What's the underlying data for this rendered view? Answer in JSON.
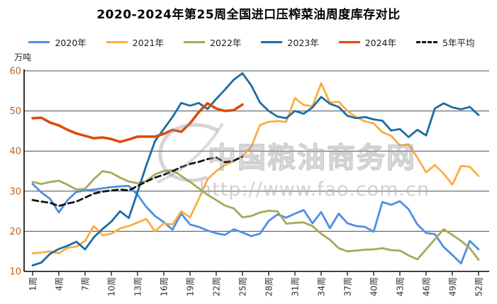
{
  "chart_data": {
    "type": "line",
    "title": "2020-2024年第25周全国进口压榨菜油周度库存对比",
    "unit_label": "万吨",
    "legend_position": "top",
    "grid": true,
    "x_axis": {
      "total_weeks": 52,
      "tick_weeks": [
        1,
        4,
        7,
        10,
        13,
        16,
        19,
        22,
        25,
        28,
        31,
        34,
        37,
        40,
        43,
        46,
        49,
        52
      ],
      "tick_labels": [
        "1周",
        "4周",
        "7周",
        "10周",
        "13周",
        "16周",
        "19周",
        "22周",
        "25周",
        "28周",
        "31周",
        "34周",
        "37周",
        "40周",
        "43周",
        "46周",
        "49周",
        "52周"
      ],
      "label_color": "#333333"
    },
    "y_axis": {
      "min": 10,
      "max": 60,
      "ticks": [
        10,
        20,
        30,
        40,
        50,
        60
      ],
      "label_color": "#C1641F"
    },
    "colors": {
      "gridline": "#4d4d4d",
      "axis": "#000000",
      "watermark": "#999999"
    },
    "series": [
      {
        "name": "2020年",
        "color": "#4E8FE2",
        "dash": null,
        "width": 2.8,
        "values": [
          31.8,
          29.7,
          28.1,
          24.7,
          27.8,
          29.8,
          30.2,
          30.4,
          30.7,
          31.0,
          31.2,
          31.3,
          29.1,
          26.1,
          23.8,
          22.3,
          20.4,
          24.4,
          21.7,
          21.1,
          20.2,
          19.5,
          19.1,
          20.5,
          19.7,
          18.8,
          19.4,
          22.6,
          24.2,
          23.4,
          24.4,
          25.3,
          22.0,
          24.8,
          20.8,
          24.4,
          22.0,
          21.3,
          21.1,
          19.9,
          27.3,
          26.6,
          27.5,
          25.5,
          21.7,
          19.6,
          19.3,
          16.1,
          14.1,
          12.0,
          17.6,
          15.5
        ]
      },
      {
        "name": "2021年",
        "color": "#FBAD41",
        "dash": null,
        "width": 2.8,
        "values": [
          14.5,
          14.7,
          15.0,
          14.5,
          15.9,
          16.2,
          17.6,
          21.3,
          19.0,
          19.4,
          20.7,
          21.3,
          22.2,
          23.1,
          20.0,
          22.0,
          21.7,
          25.0,
          23.5,
          28.0,
          33.0,
          35.0,
          36.5,
          37.5,
          38.8,
          41.0,
          46.5,
          47.3,
          47.5,
          47.3,
          53.2,
          51.5,
          51.2,
          56.9,
          52.1,
          52.3,
          50.0,
          48.5,
          47.4,
          46.9,
          44.7,
          43.8,
          41.4,
          41.7,
          38.4,
          34.7,
          36.5,
          34.4,
          31.6,
          36.3,
          36.1,
          33.8
        ]
      },
      {
        "name": "2022年",
        "color": "#A9A857",
        "dash": null,
        "width": 2.8,
        "values": [
          32.3,
          31.8,
          32.3,
          32.6,
          31.6,
          30.4,
          30.6,
          33.0,
          35.0,
          34.6,
          33.4,
          32.4,
          32.0,
          32.5,
          34.2,
          35.0,
          35.2,
          33.8,
          32.3,
          30.7,
          29.1,
          27.8,
          26.4,
          25.7,
          23.5,
          23.8,
          24.7,
          25.1,
          25.0,
          21.9,
          22.1,
          22.2,
          21.3,
          19.4,
          17.9,
          15.8,
          15.0,
          15.2,
          15.4,
          15.5,
          15.8,
          15.3,
          15.2,
          14.0,
          13.0,
          15.5,
          18.0,
          20.5,
          19.1,
          17.6,
          15.8,
          12.9
        ]
      },
      {
        "name": "2023年",
        "color": "#1B6CA4",
        "dash": null,
        "width": 2.8,
        "values": [
          11.5,
          12.2,
          14.4,
          15.6,
          16.4,
          17.4,
          15.5,
          18.5,
          20.6,
          22.4,
          25.0,
          23.3,
          29.8,
          36.4,
          42.5,
          45.5,
          48.5,
          52.0,
          51.3,
          52.0,
          50.5,
          53.0,
          55.3,
          57.8,
          59.4,
          56.4,
          52.1,
          50.0,
          48.6,
          48.2,
          50.0,
          49.3,
          50.9,
          53.5,
          51.8,
          51.0,
          48.8,
          48.2,
          48.5,
          47.9,
          47.6,
          45.1,
          45.5,
          43.5,
          45.3,
          43.9,
          50.6,
          51.9,
          50.9,
          50.4,
          51.0,
          49.0
        ]
      },
      {
        "name": "2024年",
        "color": "#DD4B0E",
        "dash": null,
        "width": 3.6,
        "values": [
          48.2,
          48.3,
          47.1,
          46.4,
          45.3,
          44.4,
          43.8,
          43.2,
          43.4,
          43.0,
          42.3,
          42.9,
          43.6,
          43.6,
          43.6,
          44.3,
          45.3,
          44.8,
          46.9,
          49.7,
          51.9,
          50.6,
          50.0,
          50.2,
          51.6
        ]
      },
      {
        "name": "5年平均",
        "color": "#141414",
        "dash": "8 5",
        "width": 2.8,
        "values": [
          27.8,
          27.4,
          27.1,
          26.3,
          26.9,
          27.4,
          28.4,
          29.4,
          29.9,
          30.2,
          30.4,
          30.2,
          31.3,
          32.4,
          33.4,
          34.1,
          35.0,
          36.0,
          36.8,
          37.3,
          38.0,
          38.4,
          37.2,
          37.6,
          38.6
        ]
      }
    ],
    "watermark": {
      "text": "中国粮油商务网",
      "url": "http://www.fao.com.cn"
    }
  }
}
